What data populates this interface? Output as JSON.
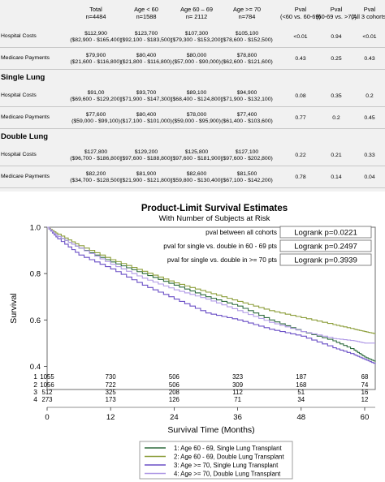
{
  "table": {
    "columns": [
      {
        "name": "Total",
        "n": "n=4484"
      },
      {
        "name": "Age < 60",
        "n": "n=1588"
      },
      {
        "name": "Age 60 – 69",
        "n": "n= 2112"
      },
      {
        "name": "Age >= 70",
        "n": "n=784"
      }
    ],
    "pval_headers": [
      {
        "line1": "Pval",
        "line2": "(<60 vs. 60-69)"
      },
      {
        "line1": "Pval",
        "line2": "(60-69 vs. >70)"
      },
      {
        "line1": "Pval",
        "line2": "(All 3 cohorts)"
      }
    ],
    "sections": [
      {
        "title": "",
        "rows": [
          {
            "label": "Hospital Costs",
            "cells": [
              [
                "$112,900",
                "($82,900 - $165,400)"
              ],
              [
                "$123,700",
                "($92,100 - $183,500)"
              ],
              [
                "$107,300",
                "($79,300 - $153,200)"
              ],
              [
                "$105,100",
                "($78,600 - $152,500)"
              ]
            ],
            "pvals": [
              "<0.01",
              "0.94",
              "<0.01"
            ]
          },
          {
            "label": "Medicare Payments",
            "cells": [
              [
                "$79,900",
                "($21,600 - $116,800)"
              ],
              [
                "$80,400",
                "($21,800 - $116,800)"
              ],
              [
                "$80,000",
                "($57,000 - $90,000)"
              ],
              [
                "$78,800",
                "($62,600 - $121,600)"
              ]
            ],
            "pvals": [
              "0.43",
              "0.25",
              "0.43"
            ]
          }
        ]
      },
      {
        "title": "Single Lung",
        "rows": [
          {
            "label": "Hospital Costs",
            "cells": [
              [
                "$91,00",
                "($69,600 - $129,200)"
              ],
              [
                "$93,700",
                "($71,900 - $147,300)"
              ],
              [
                "$89,100",
                "($68,400 - $124,800)"
              ],
              [
                "$94,900",
                "($71,900 - $132,100)"
              ]
            ],
            "pvals": [
              "0.08",
              "0.35",
              "0.2"
            ]
          },
          {
            "label": "Medicare Payments",
            "cells": [
              [
                "$77,600",
                "($59,000 - $99,100)"
              ],
              [
                "$80,400",
                "($17,100 - $101,000)"
              ],
              [
                "$78,000",
                "($59,000 - $95,900)"
              ],
              [
                "$77,400",
                "($61,400 - $103,600)"
              ]
            ],
            "pvals": [
              "0.77",
              "0.2",
              "0.45"
            ]
          }
        ]
      },
      {
        "title": "Double Lung",
        "rows": [
          {
            "label": "Hospital Costs",
            "cells": [
              [
                "$127,800",
                "($96,700 - $186,800)"
              ],
              [
                "$129,200",
                "($97,600 - $188,800)"
              ],
              [
                "$125,800",
                "($97,600 - $181,900)"
              ],
              [
                "$127,100",
                "($97,600 - $202,800)"
              ]
            ],
            "pvals": [
              "0.22",
              "0.21",
              "0.33"
            ]
          },
          {
            "label": "Medicare Payments",
            "cells": [
              [
                "$82,200",
                "($34,700 - $128,500)"
              ],
              [
                "$81,900",
                "($21,900 - $121,800)"
              ],
              [
                "$82,600",
                "($59,800 - $130,400)"
              ],
              [
                "$81,500",
                "($67,100 - $142,200)"
              ]
            ],
            "pvals": [
              "0.78",
              "0.14",
              "0.04"
            ]
          }
        ]
      }
    ]
  },
  "chart_data": {
    "type": "line",
    "title": "Product-Limit Survival Estimates",
    "subtitle": "With Number of Subjects at Risk",
    "xlabel": "Survival Time (Months)",
    "ylabel": "Survival",
    "xlim": [
      0,
      62
    ],
    "ylim": [
      0.3,
      1.0
    ],
    "xticks": [
      0,
      12,
      24,
      36,
      48,
      60
    ],
    "yticks": [
      0.4,
      0.6,
      0.8,
      1.0
    ],
    "ytick_labels": [
      "0.4",
      "0.6",
      "0.8",
      "1.0"
    ],
    "grid": false,
    "annotations": [
      {
        "text": "pval between all cohorts",
        "box": "Logrank p=0.0221"
      },
      {
        "text": "pval for single vs. double in 60 - 69 pts",
        "box": "Logrank p=0.2497"
      },
      {
        "text": "pval for single vs. double in >= 70 pts",
        "box": "Logrank p=0.3939"
      }
    ],
    "series": [
      {
        "id": "1",
        "name": "Age 60 - 69, Single Lung Transplant",
        "color": "#2e6b3e",
        "x": [
          0,
          2,
          6,
          12,
          18,
          24,
          30,
          36,
          42,
          48,
          54,
          58,
          60,
          62
        ],
        "y": [
          1.0,
          0.96,
          0.91,
          0.85,
          0.8,
          0.75,
          0.7,
          0.66,
          0.6,
          0.55,
          0.51,
          0.47,
          0.44,
          0.42
        ]
      },
      {
        "id": "2",
        "name": "Age 60 - 69, Double Lung Transplant",
        "color": "#8c9e3a",
        "x": [
          0,
          2,
          6,
          12,
          18,
          24,
          30,
          36,
          42,
          48,
          54,
          58,
          60,
          62
        ],
        "y": [
          1.0,
          0.97,
          0.92,
          0.86,
          0.81,
          0.76,
          0.72,
          0.68,
          0.64,
          0.61,
          0.58,
          0.56,
          0.55,
          0.54
        ]
      },
      {
        "id": "3",
        "name": "Age >= 70, Single Lung Transplant",
        "color": "#6a4fc6",
        "x": [
          0,
          2,
          6,
          12,
          18,
          24,
          30,
          36,
          42,
          48,
          54,
          58,
          60,
          62
        ],
        "y": [
          1.0,
          0.95,
          0.88,
          0.82,
          0.75,
          0.69,
          0.63,
          0.6,
          0.56,
          0.53,
          0.48,
          0.45,
          0.43,
          0.41
        ]
      },
      {
        "id": "4",
        "name": "Age >= 70, Double Lung Transplant",
        "color": "#b09ae6",
        "x": [
          0,
          2,
          6,
          12,
          18,
          24,
          30,
          36,
          42,
          48,
          54,
          58,
          60,
          62
        ],
        "y": [
          1.0,
          0.96,
          0.91,
          0.84,
          0.78,
          0.73,
          0.69,
          0.64,
          0.59,
          0.55,
          0.52,
          0.51,
          0.5,
          0.5
        ]
      }
    ],
    "at_risk": {
      "times": [
        0,
        12,
        24,
        36,
        48,
        60
      ],
      "rows": [
        {
          "id": "1",
          "counts": [
            "1055",
            "730",
            "506",
            "323",
            "187",
            "68"
          ]
        },
        {
          "id": "2",
          "counts": [
            "1056",
            "722",
            "506",
            "309",
            "168",
            "74"
          ]
        },
        {
          "id": "3",
          "counts": [
            "512",
            "325",
            "208",
            "112",
            "51",
            "16"
          ]
        },
        {
          "id": "4",
          "counts": [
            "273",
            "173",
            "126",
            "71",
            "34",
            "12"
          ]
        }
      ]
    },
    "legend_position": "bottom"
  }
}
